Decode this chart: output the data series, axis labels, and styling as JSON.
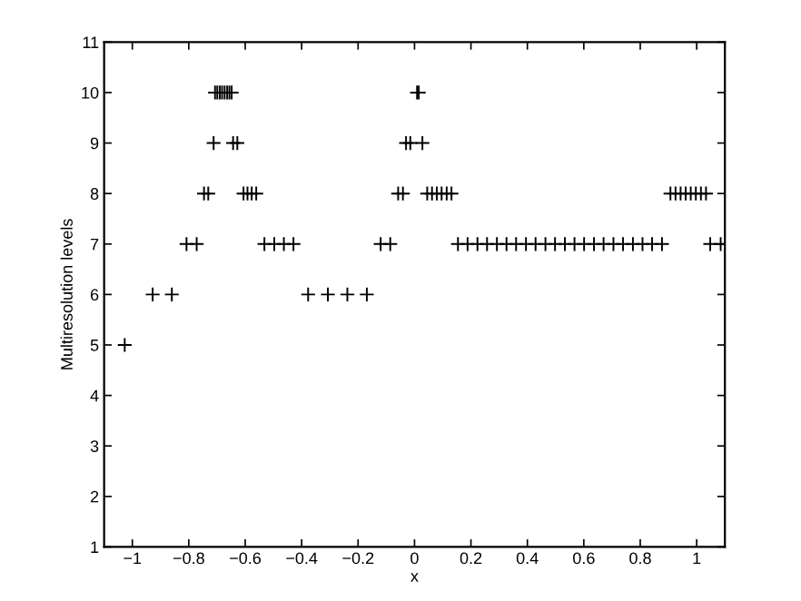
{
  "chart_data": {
    "type": "scatter",
    "xlabel": "x",
    "ylabel": "Multiresolution levels",
    "series": [
      {
        "color": "#000000",
        "x": [
          -1.027,
          -0.928,
          -0.86,
          -0.377,
          -0.307,
          -0.238,
          -0.169,
          -0.808,
          -0.772,
          -0.532,
          -0.497,
          -0.463,
          -0.429,
          -0.12,
          -0.086,
          -0.746,
          -0.731,
          -0.606,
          -0.592,
          -0.577,
          -0.561,
          -0.058,
          -0.041,
          0.045,
          0.062,
          0.079,
          0.096,
          0.114,
          0.131,
          0.907,
          0.925,
          0.943,
          0.961,
          0.979,
          0.997,
          1.015,
          1.033,
          0.154,
          0.188,
          0.223,
          0.257,
          0.292,
          0.326,
          0.36,
          0.395,
          0.429,
          0.464,
          0.498,
          0.533,
          0.567,
          0.601,
          0.636,
          0.67,
          0.705,
          0.739,
          0.774,
          0.808,
          0.842,
          0.877,
          1.048,
          1.085,
          -0.712,
          -0.643,
          -0.628,
          -0.03,
          -0.015,
          0.028,
          -0.707,
          -0.699,
          -0.69,
          -0.682,
          -0.673,
          -0.664,
          -0.656,
          -0.648,
          0.009,
          0.015
        ],
        "values": [
          5,
          6,
          6,
          6,
          6,
          6,
          6,
          7,
          7,
          7,
          7,
          7,
          7,
          7,
          7,
          8,
          8,
          8,
          8,
          8,
          8,
          8,
          8,
          8,
          8,
          8,
          8,
          8,
          8,
          8,
          8,
          8,
          8,
          8,
          8,
          8,
          8,
          7,
          7,
          7,
          7,
          7,
          7,
          7,
          7,
          7,
          7,
          7,
          7,
          7,
          7,
          7,
          7,
          7,
          7,
          7,
          7,
          7,
          7,
          7,
          7,
          9,
          9,
          9,
          9,
          9,
          9,
          10,
          10,
          10,
          10,
          10,
          10,
          10,
          10,
          10,
          10
        ]
      }
    ],
    "marker": "cross",
    "grid": false,
    "legend": false,
    "xlim": [
      -1.1,
      1.1
    ],
    "xticks": [
      -1,
      -0.8,
      -0.6,
      -0.4,
      -0.2,
      0,
      0.2,
      0.4,
      0.6,
      0.8,
      1
    ],
    "ylim": [
      1,
      11
    ],
    "yticks": [
      1,
      2,
      3,
      4,
      5,
      6,
      7,
      8,
      9,
      10,
      11
    ]
  }
}
